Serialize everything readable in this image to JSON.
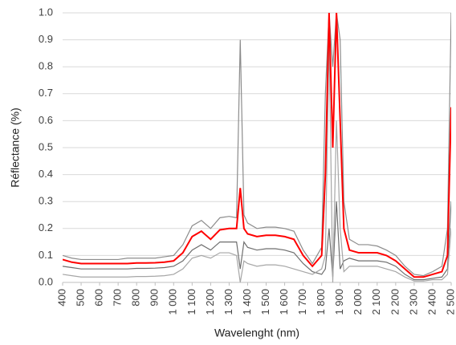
{
  "chart_data": {
    "type": "line",
    "x_label": "Wavelenght (nm)",
    "y_label": "Réflectance (%)",
    "x": [
      400,
      450,
      500,
      550,
      600,
      650,
      700,
      750,
      800,
      850,
      900,
      950,
      1000,
      1050,
      1100,
      1150,
      1200,
      1250,
      1300,
      1340,
      1360,
      1380,
      1400,
      1450,
      1500,
      1550,
      1600,
      1650,
      1700,
      1750,
      1800,
      1820,
      1840,
      1860,
      1880,
      1900,
      1920,
      1950,
      2000,
      2050,
      2100,
      2150,
      2200,
      2250,
      2300,
      2350,
      2400,
      2450,
      2480,
      2500
    ],
    "series": [
      {
        "color": "#8c8c8c",
        "values": [
          0.1,
          0.09,
          0.085,
          0.085,
          0.085,
          0.085,
          0.085,
          0.09,
          0.09,
          0.09,
          0.09,
          0.095,
          0.1,
          0.14,
          0.21,
          0.23,
          0.2,
          0.24,
          0.245,
          0.24,
          0.9,
          0.25,
          0.22,
          0.2,
          0.205,
          0.205,
          0.2,
          0.19,
          0.12,
          0.07,
          0.13,
          0.7,
          1.0,
          0.8,
          1.0,
          0.9,
          0.3,
          0.16,
          0.14,
          0.14,
          0.135,
          0.12,
          0.1,
          0.06,
          0.03,
          0.025,
          0.04,
          0.06,
          0.2,
          1.0
        ]
      },
      {
        "color": "#6e6e6e",
        "values": [
          0.06,
          0.055,
          0.05,
          0.05,
          0.05,
          0.05,
          0.05,
          0.05,
          0.052,
          0.052,
          0.053,
          0.055,
          0.06,
          0.08,
          0.12,
          0.14,
          0.12,
          0.15,
          0.15,
          0.15,
          0.05,
          0.15,
          0.13,
          0.12,
          0.125,
          0.125,
          0.12,
          0.11,
          0.07,
          0.04,
          0.03,
          0.05,
          0.2,
          0.02,
          0.3,
          0.05,
          0.08,
          0.09,
          0.08,
          0.08,
          0.08,
          0.075,
          0.06,
          0.03,
          0.01,
          0.01,
          0.015,
          0.02,
          0.05,
          0.3
        ]
      },
      {
        "color": "#a6a6a6",
        "values": [
          0.03,
          0.025,
          0.02,
          0.02,
          0.02,
          0.02,
          0.02,
          0.02,
          0.022,
          0.022,
          0.023,
          0.025,
          0.03,
          0.05,
          0.09,
          0.1,
          0.09,
          0.11,
          0.11,
          0.1,
          0.0,
          0.08,
          0.07,
          0.06,
          0.065,
          0.065,
          0.06,
          0.05,
          0.04,
          0.03,
          0.05,
          0.1,
          0.9,
          0.0,
          0.6,
          0.2,
          0.04,
          0.06,
          0.06,
          0.06,
          0.06,
          0.05,
          0.04,
          0.02,
          0.005,
          0.005,
          0.01,
          0.01,
          0.03,
          0.2
        ]
      },
      {
        "color": "#ff0000",
        "values": [
          0.085,
          0.075,
          0.07,
          0.07,
          0.07,
          0.07,
          0.07,
          0.07,
          0.072,
          0.072,
          0.073,
          0.075,
          0.08,
          0.11,
          0.17,
          0.19,
          0.16,
          0.195,
          0.2,
          0.2,
          0.35,
          0.2,
          0.18,
          0.17,
          0.175,
          0.175,
          0.17,
          0.16,
          0.1,
          0.06,
          0.1,
          0.4,
          1.0,
          0.5,
          1.0,
          0.6,
          0.2,
          0.12,
          0.11,
          0.11,
          0.11,
          0.1,
          0.08,
          0.05,
          0.02,
          0.02,
          0.03,
          0.04,
          0.1,
          0.65
        ]
      }
    ],
    "xlim": [
      400,
      2500
    ],
    "xticks": [
      400,
      500,
      600,
      700,
      800,
      900,
      {
        "value": 1000,
        "label": "1 000"
      },
      {
        "value": 1100,
        "label": "1 100"
      },
      {
        "value": 1200,
        "label": "1 200"
      },
      {
        "value": 1300,
        "label": "1 300"
      },
      {
        "value": 1400,
        "label": "1 400"
      },
      {
        "value": 1500,
        "label": "1 500"
      },
      {
        "value": 1600,
        "label": "1 600"
      },
      {
        "value": 1700,
        "label": "1 700"
      },
      {
        "value": 1800,
        "label": "1 800"
      },
      {
        "value": 1900,
        "label": "1 900"
      },
      {
        "value": 2000,
        "label": "2 000"
      },
      {
        "value": 2100,
        "label": "2 100"
      },
      {
        "value": 2200,
        "label": "2 200"
      },
      {
        "value": 2300,
        "label": "2 300"
      },
      {
        "value": 2400,
        "label": "2 400"
      },
      {
        "value": 2500,
        "label": "2 500"
      }
    ],
    "ylim": [
      0,
      1
    ],
    "yticks": [
      {
        "value": 0,
        "label": "0.0"
      },
      0.1,
      0.2,
      0.3,
      0.4,
      0.5,
      0.6,
      0.7,
      0.8,
      0.9,
      {
        "value": 1,
        "label": "1.0"
      }
    ],
    "grid": true
  }
}
